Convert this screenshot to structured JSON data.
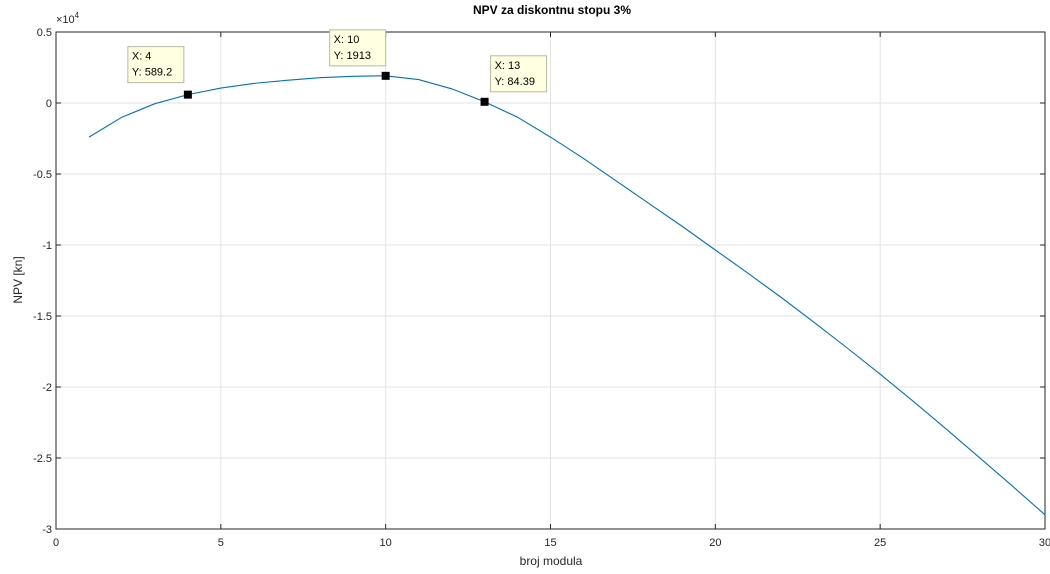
{
  "chart_data": {
    "type": "line",
    "title": "NPV za diskontnu stopu 3%",
    "xlabel": "broj modula",
    "ylabel": "NPV [kn]",
    "y_exponent_label": "×10",
    "y_exponent_power": "4",
    "xlim": [
      0,
      30
    ],
    "ylim": [
      -30000,
      5000
    ],
    "grid": true,
    "x_ticks": [
      0,
      5,
      10,
      15,
      20,
      25,
      30
    ],
    "x_tick_labels": [
      "0",
      "5",
      "10",
      "15",
      "20",
      "25",
      "30"
    ],
    "y_ticks": [
      5000,
      0,
      -5000,
      -10000,
      -15000,
      -20000,
      -25000,
      -30000
    ],
    "y_tick_labels": [
      "0.5",
      "0",
      "-0.5",
      "-1",
      "-1.5",
      "-2",
      "-2.5",
      "-3"
    ],
    "series": [
      {
        "color": "#0072bd",
        "x": [
          1,
          2,
          3,
          4,
          5,
          6,
          7,
          8,
          9,
          10,
          11,
          12,
          13,
          14,
          15,
          16,
          17,
          18,
          19,
          20,
          21,
          22,
          23,
          24,
          25,
          26,
          27,
          28,
          29,
          30
        ],
        "y": [
          -2400,
          -1000,
          -50,
          589.2,
          1050,
          1380,
          1600,
          1780,
          1880,
          1913,
          1650,
          1000,
          84.39,
          -1000,
          -2400,
          -3900,
          -5500,
          -7100,
          -8700,
          -10350,
          -12000,
          -13700,
          -15450,
          -17250,
          -19100,
          -21000,
          -22950,
          -24950,
          -26950,
          -29000
        ]
      }
    ],
    "annotations": [
      {
        "x": 4,
        "y": 589.2,
        "line1": "X: 4",
        "line2": "Y: 589.2"
      },
      {
        "x": 10,
        "y": 1913,
        "line1": "X: 10",
        "line2": "Y: 1913"
      },
      {
        "x": 13,
        "y": 84.39,
        "line1": "X: 13",
        "line2": "Y: 84.39"
      }
    ]
  }
}
